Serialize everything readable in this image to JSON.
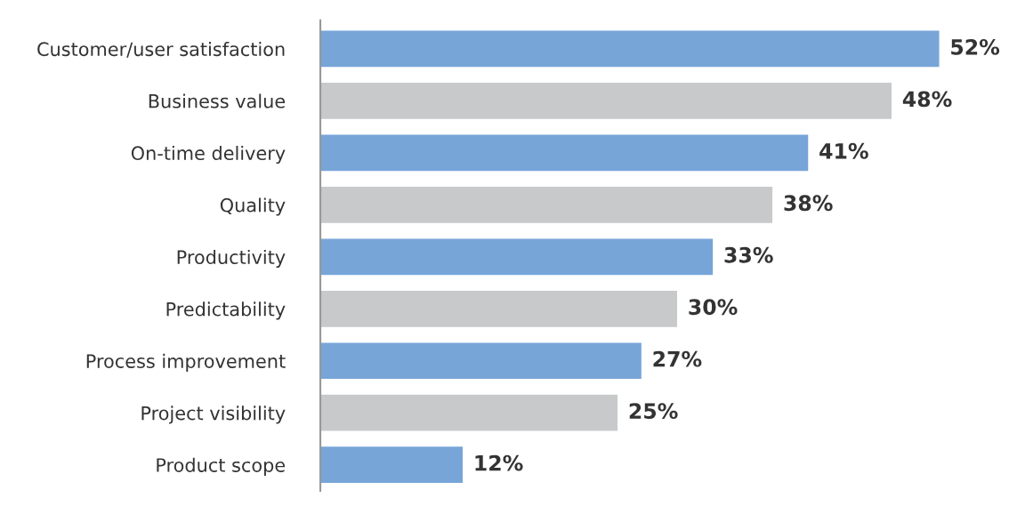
{
  "chart_data": {
    "type": "bar",
    "orientation": "horizontal",
    "categories": [
      "Customer/user satisfaction",
      "Business value",
      "On-time delivery",
      "Quality",
      "Productivity",
      "Predictability",
      "Process improvement",
      "Project visibility",
      "Product scope"
    ],
    "values": [
      52,
      48,
      41,
      38,
      33,
      30,
      27,
      25,
      12
    ],
    "colors": [
      "#77a5d8",
      "#c8c9cb",
      "#77a5d8",
      "#c8c9cb",
      "#77a5d8",
      "#c8c9cb",
      "#77a5d8",
      "#c8c9cb",
      "#77a5d8"
    ],
    "value_labels": [
      "52%",
      "48%",
      "41%",
      "38%",
      "33%",
      "30%",
      "27%",
      "25%",
      "12%"
    ],
    "grid": false,
    "legend": false
  }
}
